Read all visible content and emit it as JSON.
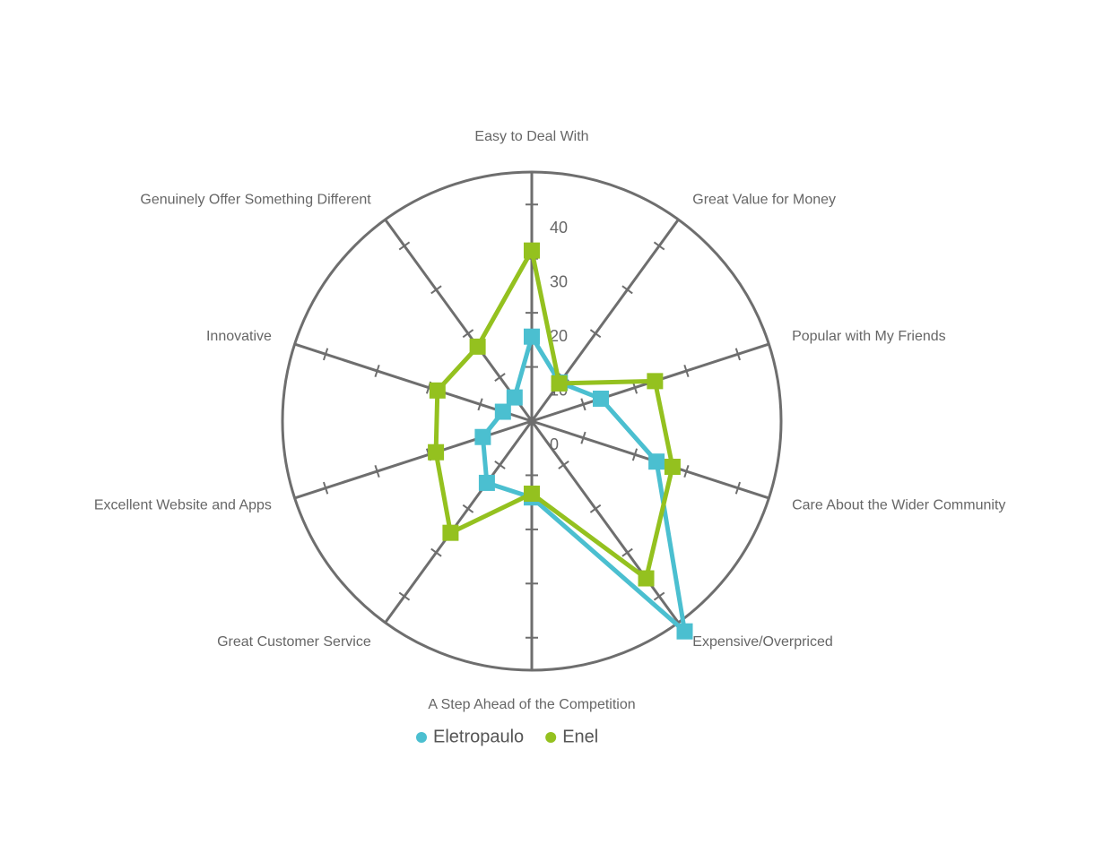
{
  "chart_data": {
    "type": "radar",
    "categories": [
      "Easy to Deal With",
      "Great Value for Money",
      "Popular with My Friends",
      "Care About the Wider Community",
      "Expensive/Overpriced",
      "A Step Ahead of the Competition",
      "Great Customer Service",
      "Excellent Website and Apps",
      "Innovative",
      "Genuinely Offer Something Different"
    ],
    "series": [
      {
        "name": "Eletropaulo",
        "color": "#4bbfd0",
        "values": [
          15.6,
          8.8,
          13.4,
          24.2,
          48,
          14.1,
          14.1,
          9.5,
          5.6,
          5.4
        ]
      },
      {
        "name": "Enel",
        "color": "#94c11f",
        "values": [
          31.5,
          8.6,
          23.9,
          27.3,
          35.9,
          13.4,
          25.5,
          18.6,
          18.3,
          17
        ]
      }
    ],
    "ylim": [
      0,
      46
    ],
    "yticks": [
      0,
      10,
      20,
      30,
      40
    ]
  }
}
